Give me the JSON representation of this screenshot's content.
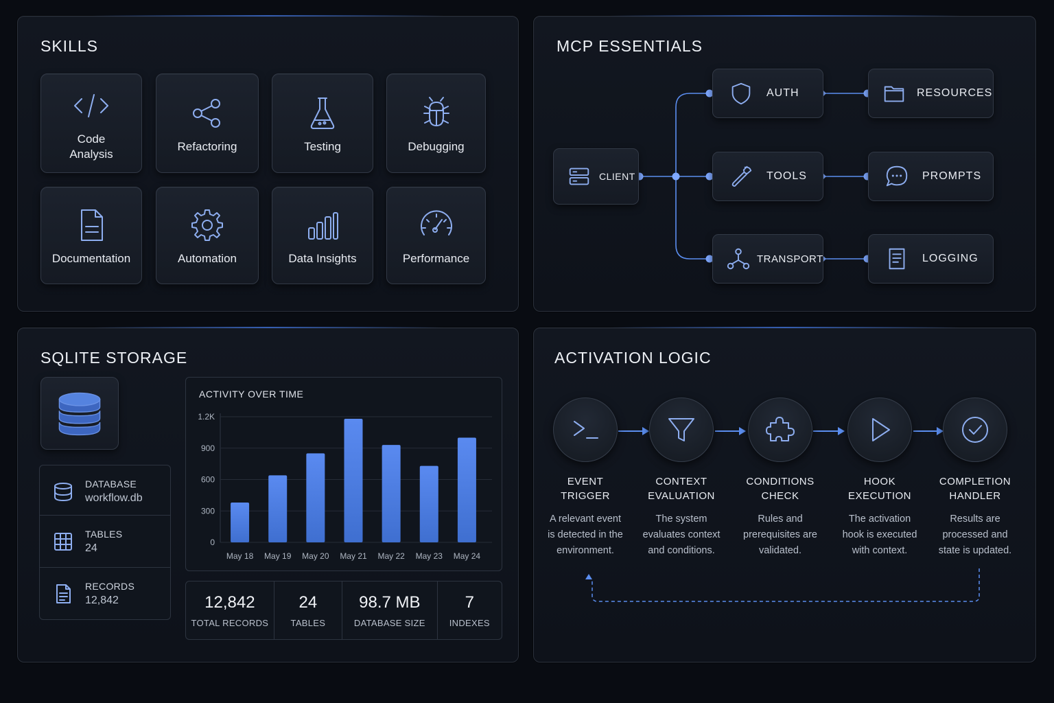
{
  "skills": {
    "title": "SKILLS",
    "items": [
      {
        "label": "Code Analysis",
        "icon": "code-icon"
      },
      {
        "label": "Refactoring",
        "icon": "share-nodes-icon"
      },
      {
        "label": "Testing",
        "icon": "flask-icon"
      },
      {
        "label": "Debugging",
        "icon": "bug-icon"
      },
      {
        "label": "Documentation",
        "icon": "document-icon"
      },
      {
        "label": "Automation",
        "icon": "gear-icon"
      },
      {
        "label": "Data Insights",
        "icon": "bar-chart-icon"
      },
      {
        "label": "Performance",
        "icon": "gauge-icon"
      }
    ]
  },
  "mcp": {
    "title": "MCP ESSENTIALS",
    "client": "CLIENT",
    "nodes": {
      "auth": "AUTH",
      "tools": "TOOLS",
      "transport": "TRANSPORT",
      "resources": "RESOURCES",
      "prompts": "PROMPTS",
      "logging": "LOGGING"
    }
  },
  "sqlite": {
    "title": "SQLITE STORAGE",
    "info": [
      {
        "key": "DATABASE",
        "value": "workflow.db",
        "icon": "database-icon"
      },
      {
        "key": "TABLES",
        "value": "24",
        "icon": "table-icon"
      },
      {
        "key": "RECORDS",
        "value": "12,842",
        "icon": "file-icon"
      }
    ],
    "stats": [
      {
        "value": "12,842",
        "label": "TOTAL RECORDS"
      },
      {
        "value": "24",
        "label": "TABLES"
      },
      {
        "value": "98.7 MB",
        "label": "DATABASE SIZE"
      },
      {
        "value": "7",
        "label": "INDEXES"
      }
    ]
  },
  "chart_data": {
    "type": "bar",
    "title": "ACTIVITY OVER TIME",
    "categories": [
      "May 18",
      "May 19",
      "May 20",
      "May 21",
      "May 22",
      "May 23",
      "May 24"
    ],
    "values": [
      380,
      640,
      850,
      1180,
      930,
      730,
      1000
    ],
    "ylim": [
      0,
      1200
    ],
    "yticks": [
      "0",
      "300",
      "600",
      "900",
      "1.2K"
    ],
    "ytick_values": [
      0,
      300,
      600,
      900,
      1200
    ],
    "grid": true,
    "bar_color": "#3f6fd0"
  },
  "activation": {
    "title": "ACTIVATION LOGIC",
    "steps": [
      {
        "title": "EVENT TRIGGER",
        "desc": "A relevant event is detected in the environment.",
        "icon": "terminal-icon"
      },
      {
        "title": "CONTEXT EVALUATION",
        "desc": "The system evaluates context and conditions.",
        "icon": "filter-icon"
      },
      {
        "title": "CONDITIONS CHECK",
        "desc": "Rules and prerequisites are validated.",
        "icon": "puzzle-icon"
      },
      {
        "title": "HOOK EXECUTION",
        "desc": "The activation hook is executed with context.",
        "icon": "play-icon"
      },
      {
        "title": "COMPLETION HANDLER",
        "desc": "Results are processed and state is updated.",
        "icon": "check-circle-icon"
      }
    ]
  },
  "colors": {
    "accent": "#5b8ef0",
    "icon": "#8eaef0",
    "background": "#090c12"
  }
}
